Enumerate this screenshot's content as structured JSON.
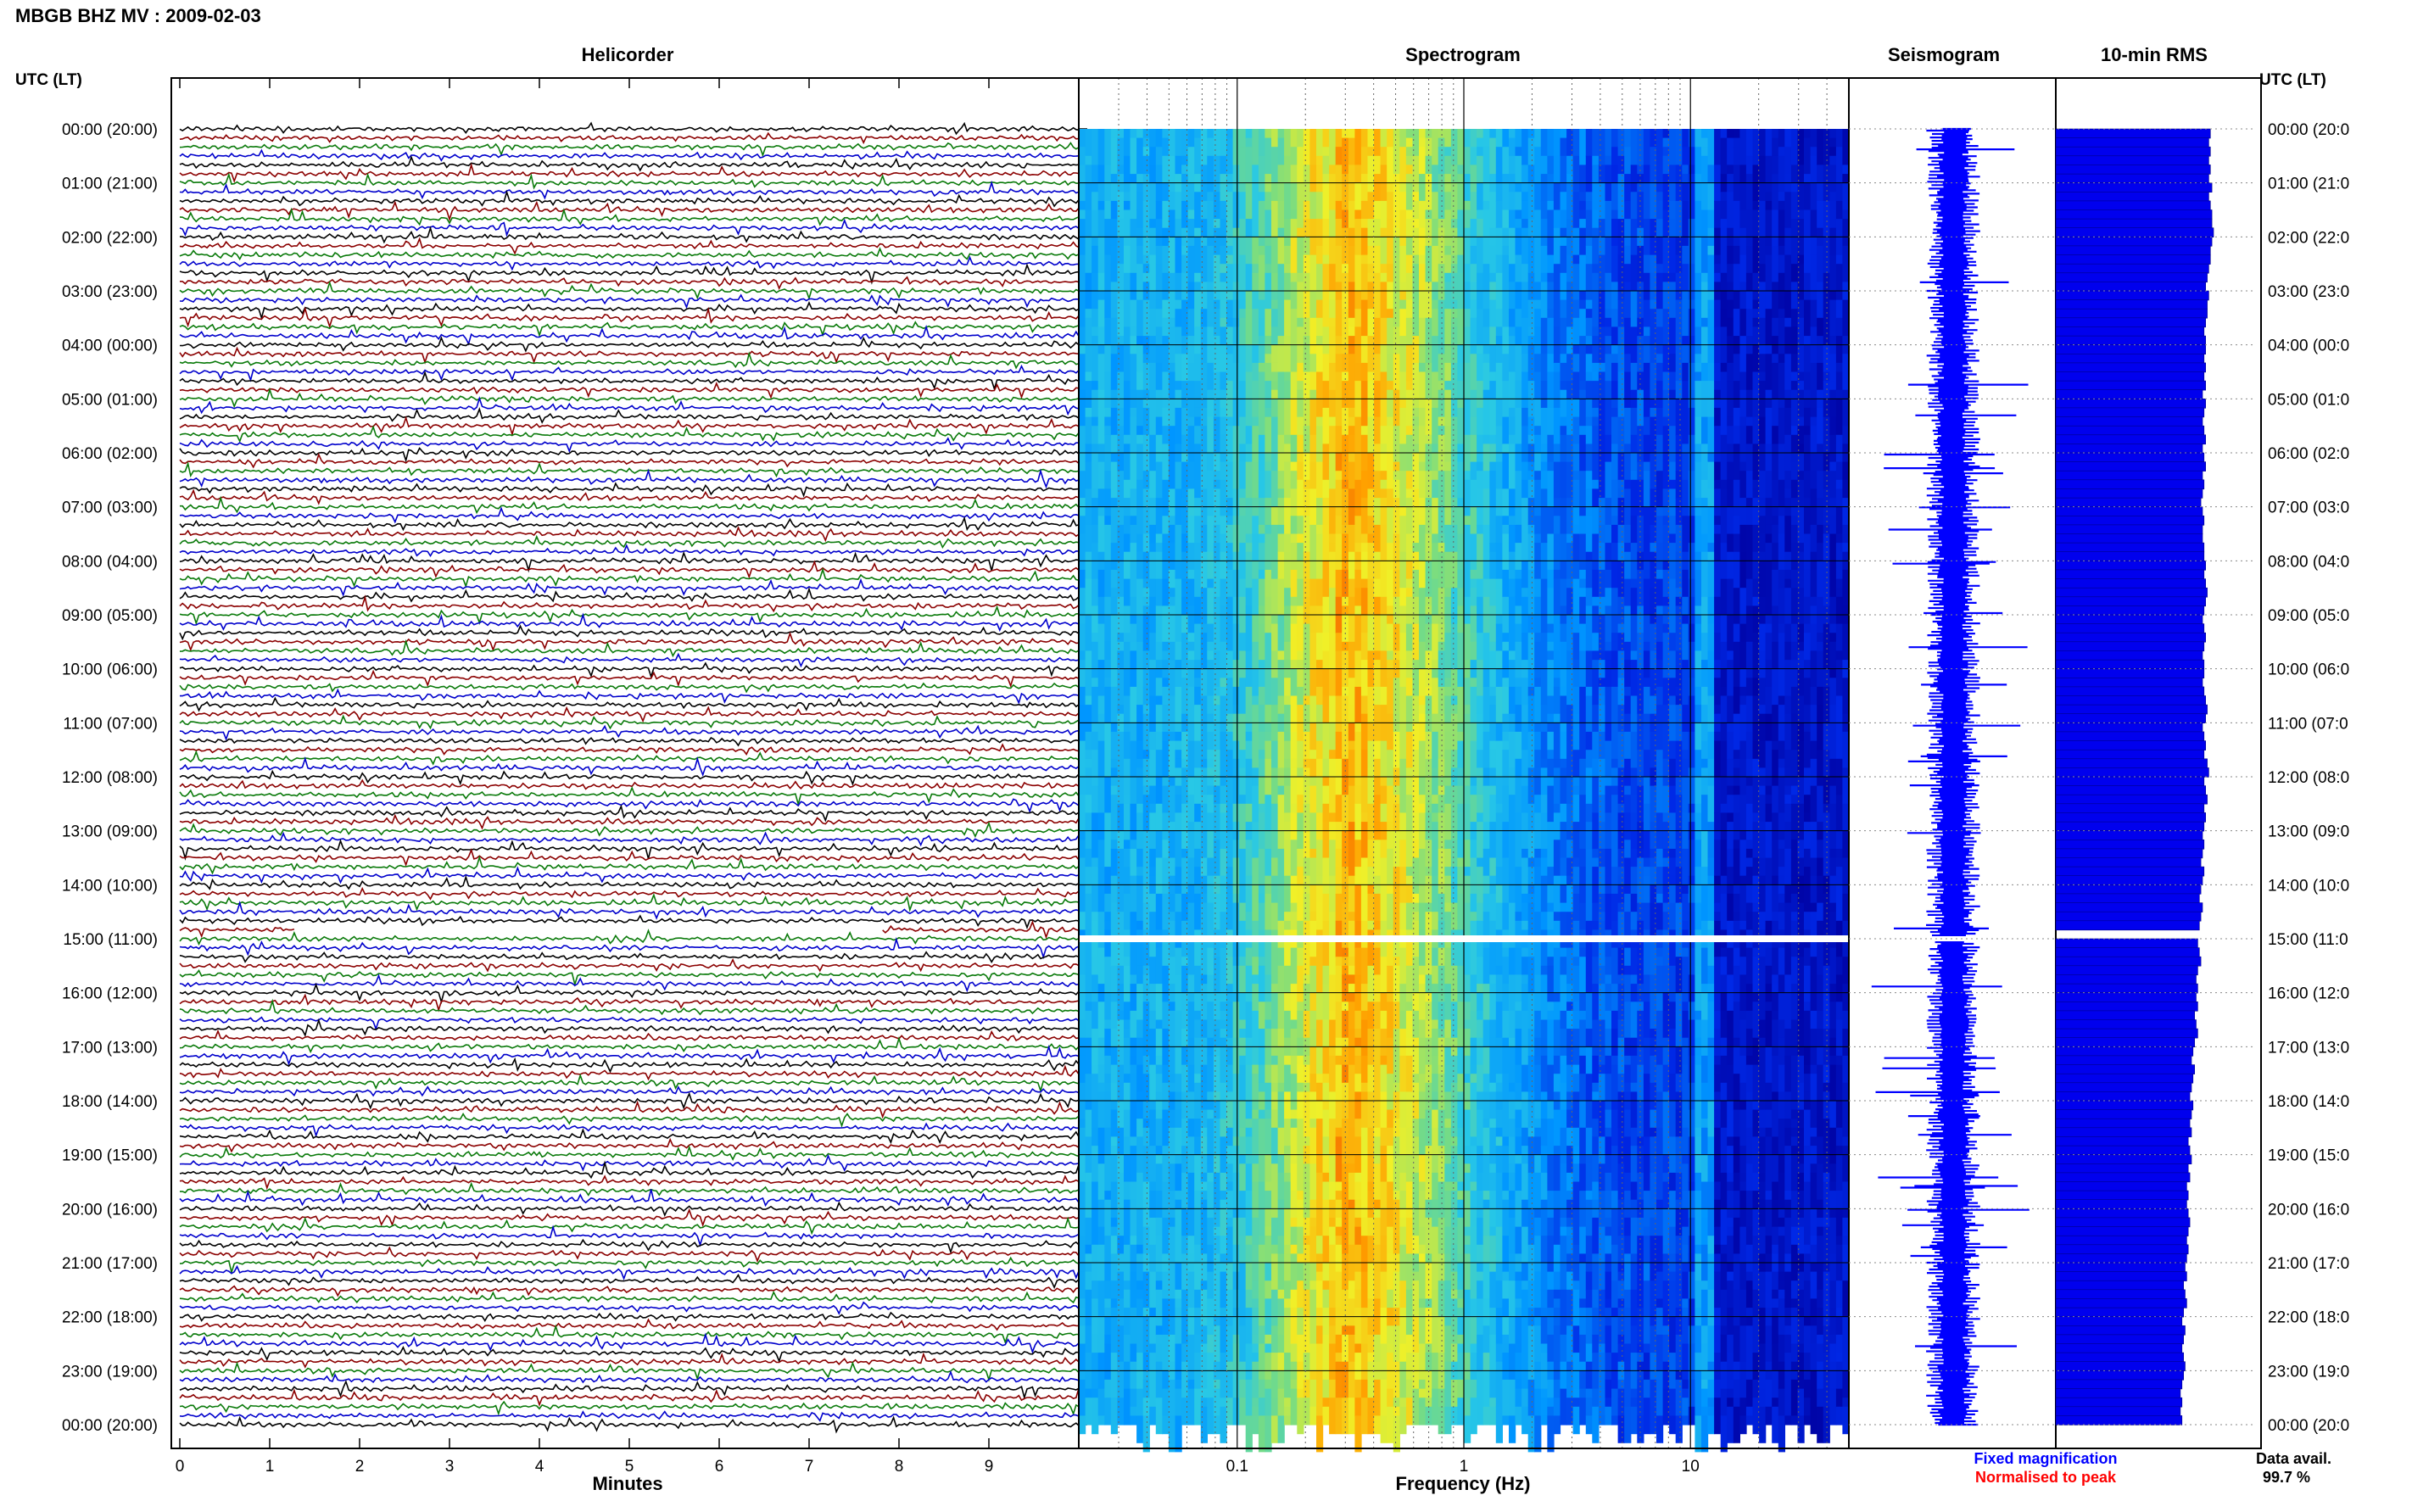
{
  "figure": {
    "title": "MBGB BHZ MV : 2009-02-03",
    "panel_titles": {
      "helicorder": "Helicorder",
      "spectrogram": "Spectrogram",
      "seismogram": "Seismogram",
      "rms": "10-min RMS"
    },
    "time_axis_label": "UTC (LT)",
    "time_labels_left": [
      "00:00 (20:00)",
      "01:00 (21:00)",
      "02:00 (22:00)",
      "03:00 (23:00)",
      "04:00 (00:00)",
      "05:00 (01:00)",
      "06:00 (02:00)",
      "07:00 (03:00)",
      "08:00 (04:00)",
      "09:00 (05:00)",
      "10:00 (06:00)",
      "11:00 (07:00)",
      "12:00 (08:00)",
      "13:00 (09:00)",
      "14:00 (10:00)",
      "15:00 (11:00)",
      "16:00 (12:00)",
      "17:00 (13:00)",
      "18:00 (14:00)",
      "19:00 (15:00)",
      "20:00 (16:00)",
      "21:00 (17:00)",
      "22:00 (18:00)",
      "23:00 (19:00)",
      "00:00 (20:00)"
    ],
    "time_labels_right": [
      "00:00 (20:0",
      "01:00 (21:0",
      "02:00 (22:0",
      "03:00 (23:0",
      "04:00 (00:0",
      "05:00 (01:0",
      "06:00 (02:0",
      "07:00 (03:0",
      "08:00 (04:0",
      "09:00 (05:0",
      "10:00 (06:0",
      "11:00 (07:0",
      "12:00 (08:0",
      "13:00 (09:0",
      "14:00 (10:0",
      "15:00 (11:0",
      "16:00 (12:0",
      "17:00 (13:0",
      "18:00 (14:0",
      "19:00 (15:0",
      "20:00 (16:0",
      "21:00 (17:0",
      "22:00 (18:0",
      "23:00 (19:0",
      "00:00 (20:0"
    ],
    "minutes_label": "Minutes",
    "minute_ticks": [
      "0",
      "1",
      "2",
      "3",
      "4",
      "5",
      "6",
      "7",
      "8",
      "9"
    ],
    "frequency_label": "Frequency (Hz)",
    "frequency_ticks": [
      "0.1",
      "1",
      "10"
    ],
    "legend_fixed": "Fixed magnification",
    "legend_normalised": "Normalised to peak",
    "data_avail_label": "Data avail.",
    "data_avail_value": "99.7 %"
  },
  "colors": {
    "helicorder_traces": [
      "#000000",
      "#8b0000",
      "#0a7a0a",
      "#0000cc"
    ],
    "fixed_magnification": "#0000ff",
    "normalised_to_peak": "#ff0000",
    "rms_bar": "#0000ee",
    "seismogram": "#0000ff"
  },
  "chart_data": [
    {
      "type": "heatmap",
      "name": "helicorder",
      "xlabel": "Minutes",
      "xlim": [
        0,
        10
      ],
      "rows_per_hour": 6,
      "gap_row": {
        "hour": 14,
        "row": 5,
        "start_minute": 1.3,
        "end_minute": 7.8
      }
    },
    {
      "type": "heatmap",
      "name": "spectrogram",
      "xlabel": "Frequency (Hz)",
      "x_scale": "log",
      "xlim": [
        0.02,
        50
      ],
      "ticks": [
        0.1,
        1,
        10
      ],
      "peak_band_hz": [
        0.2,
        0.35
      ],
      "line_at_hz": 11.5,
      "gap_at_utc": "15:00"
    },
    {
      "type": "bar",
      "name": "10-min RMS",
      "orientation": "horizontal",
      "interval_minutes": 10,
      "values": [
        0.98,
        0.97,
        0.98,
        0.97,
        0.98,
        0.97,
        0.99,
        0.97,
        0.98,
        0.99,
        0.99,
        1.0,
        0.99,
        0.98,
        0.98,
        0.97,
        0.96,
        0.95,
        0.97,
        0.96,
        0.96,
        0.95,
        0.94,
        0.95,
        0.95,
        0.94,
        0.95,
        0.94,
        0.95,
        0.93,
        0.95,
        0.94,
        0.93,
        0.94,
        0.95,
        0.93,
        0.94,
        0.95,
        0.93,
        0.94,
        0.93,
        0.92,
        0.93,
        0.94,
        0.93,
        0.93,
        0.94,
        0.94,
        0.95,
        0.94,
        0.95,
        0.96,
        0.95,
        0.94,
        0.93,
        0.94,
        0.95,
        0.94,
        0.93,
        0.94,
        0.94,
        0.93,
        0.94,
        0.95,
        0.96,
        0.95,
        0.93,
        0.94,
        0.95,
        0.94,
        0.96,
        0.97,
        0.94,
        0.95,
        0.96,
        0.94,
        0.95,
        0.94,
        0.93,
        0.94,
        0.93,
        0.92,
        0.94,
        0.93,
        0.92,
        0.91,
        0.93,
        0.92,
        0.91,
        0.0,
        0.9,
        0.91,
        0.92,
        0.9,
        0.89,
        0.9,
        0.89,
        0.9,
        0.88,
        0.89,
        0.9,
        0.88,
        0.87,
        0.86,
        0.88,
        0.87,
        0.86,
        0.85,
        0.87,
        0.86,
        0.85,
        0.86,
        0.84,
        0.85,
        0.86,
        0.84,
        0.85,
        0.83,
        0.84,
        0.83,
        0.84,
        0.85,
        0.84,
        0.83,
        0.84,
        0.83,
        0.82,
        0.83,
        0.81,
        0.82,
        0.83,
        0.81,
        0.8,
        0.82,
        0.81,
        0.8,
        0.81,
        0.82,
        0.81,
        0.8,
        0.79,
        0.8,
        0.79,
        0.8
      ]
    }
  ]
}
